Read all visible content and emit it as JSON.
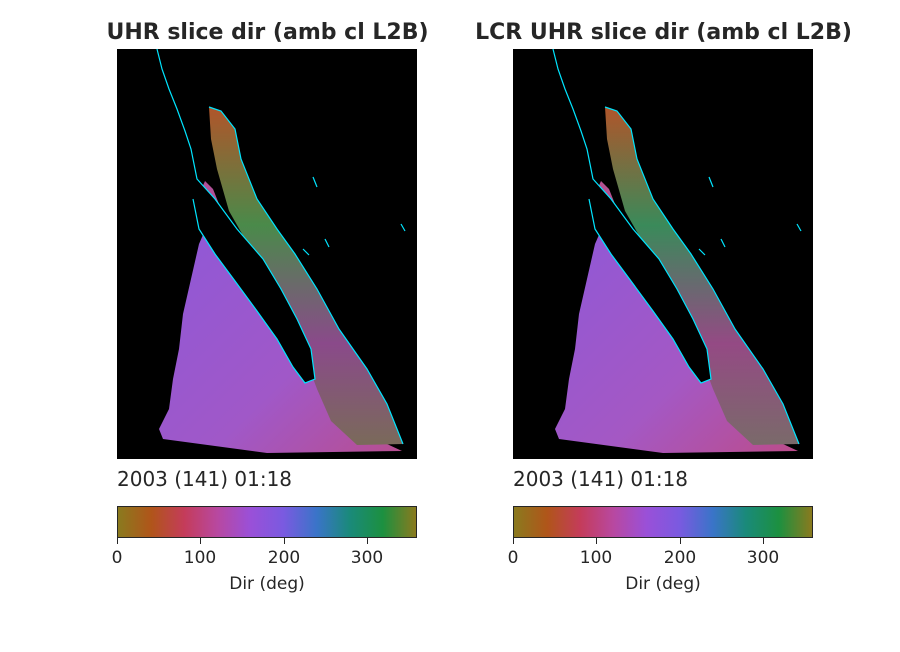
{
  "panels": [
    {
      "title": "UHR slice dir (amb cl L2B)",
      "timestamp": "2003 (141) 01:18",
      "colorbar": {
        "label": "Dir (deg)",
        "ticks": [
          "0",
          "100",
          "200",
          "300"
        ],
        "range": [
          0,
          360
        ]
      }
    },
    {
      "title": "LCR UHR slice dir (amb cl L2B)",
      "timestamp": "2003 (141) 01:18",
      "colorbar": {
        "label": "Dir (deg)",
        "ticks": [
          "0",
          "100",
          "200",
          "300"
        ],
        "range": [
          0,
          360
        ]
      }
    }
  ],
  "colormap": [
    "#8a7a1e",
    "#b0551a",
    "#c43c5a",
    "#b848a0",
    "#9a50d8",
    "#7a5ae0",
    "#3a74c8",
    "#1a8a7a",
    "#1c9040",
    "#8a7a1e"
  ],
  "colors": {
    "map_background": "#000000",
    "coastline": "#00e5ff",
    "ocean_field": "#9a58d0",
    "gulf_field": "#2f8c5a"
  }
}
